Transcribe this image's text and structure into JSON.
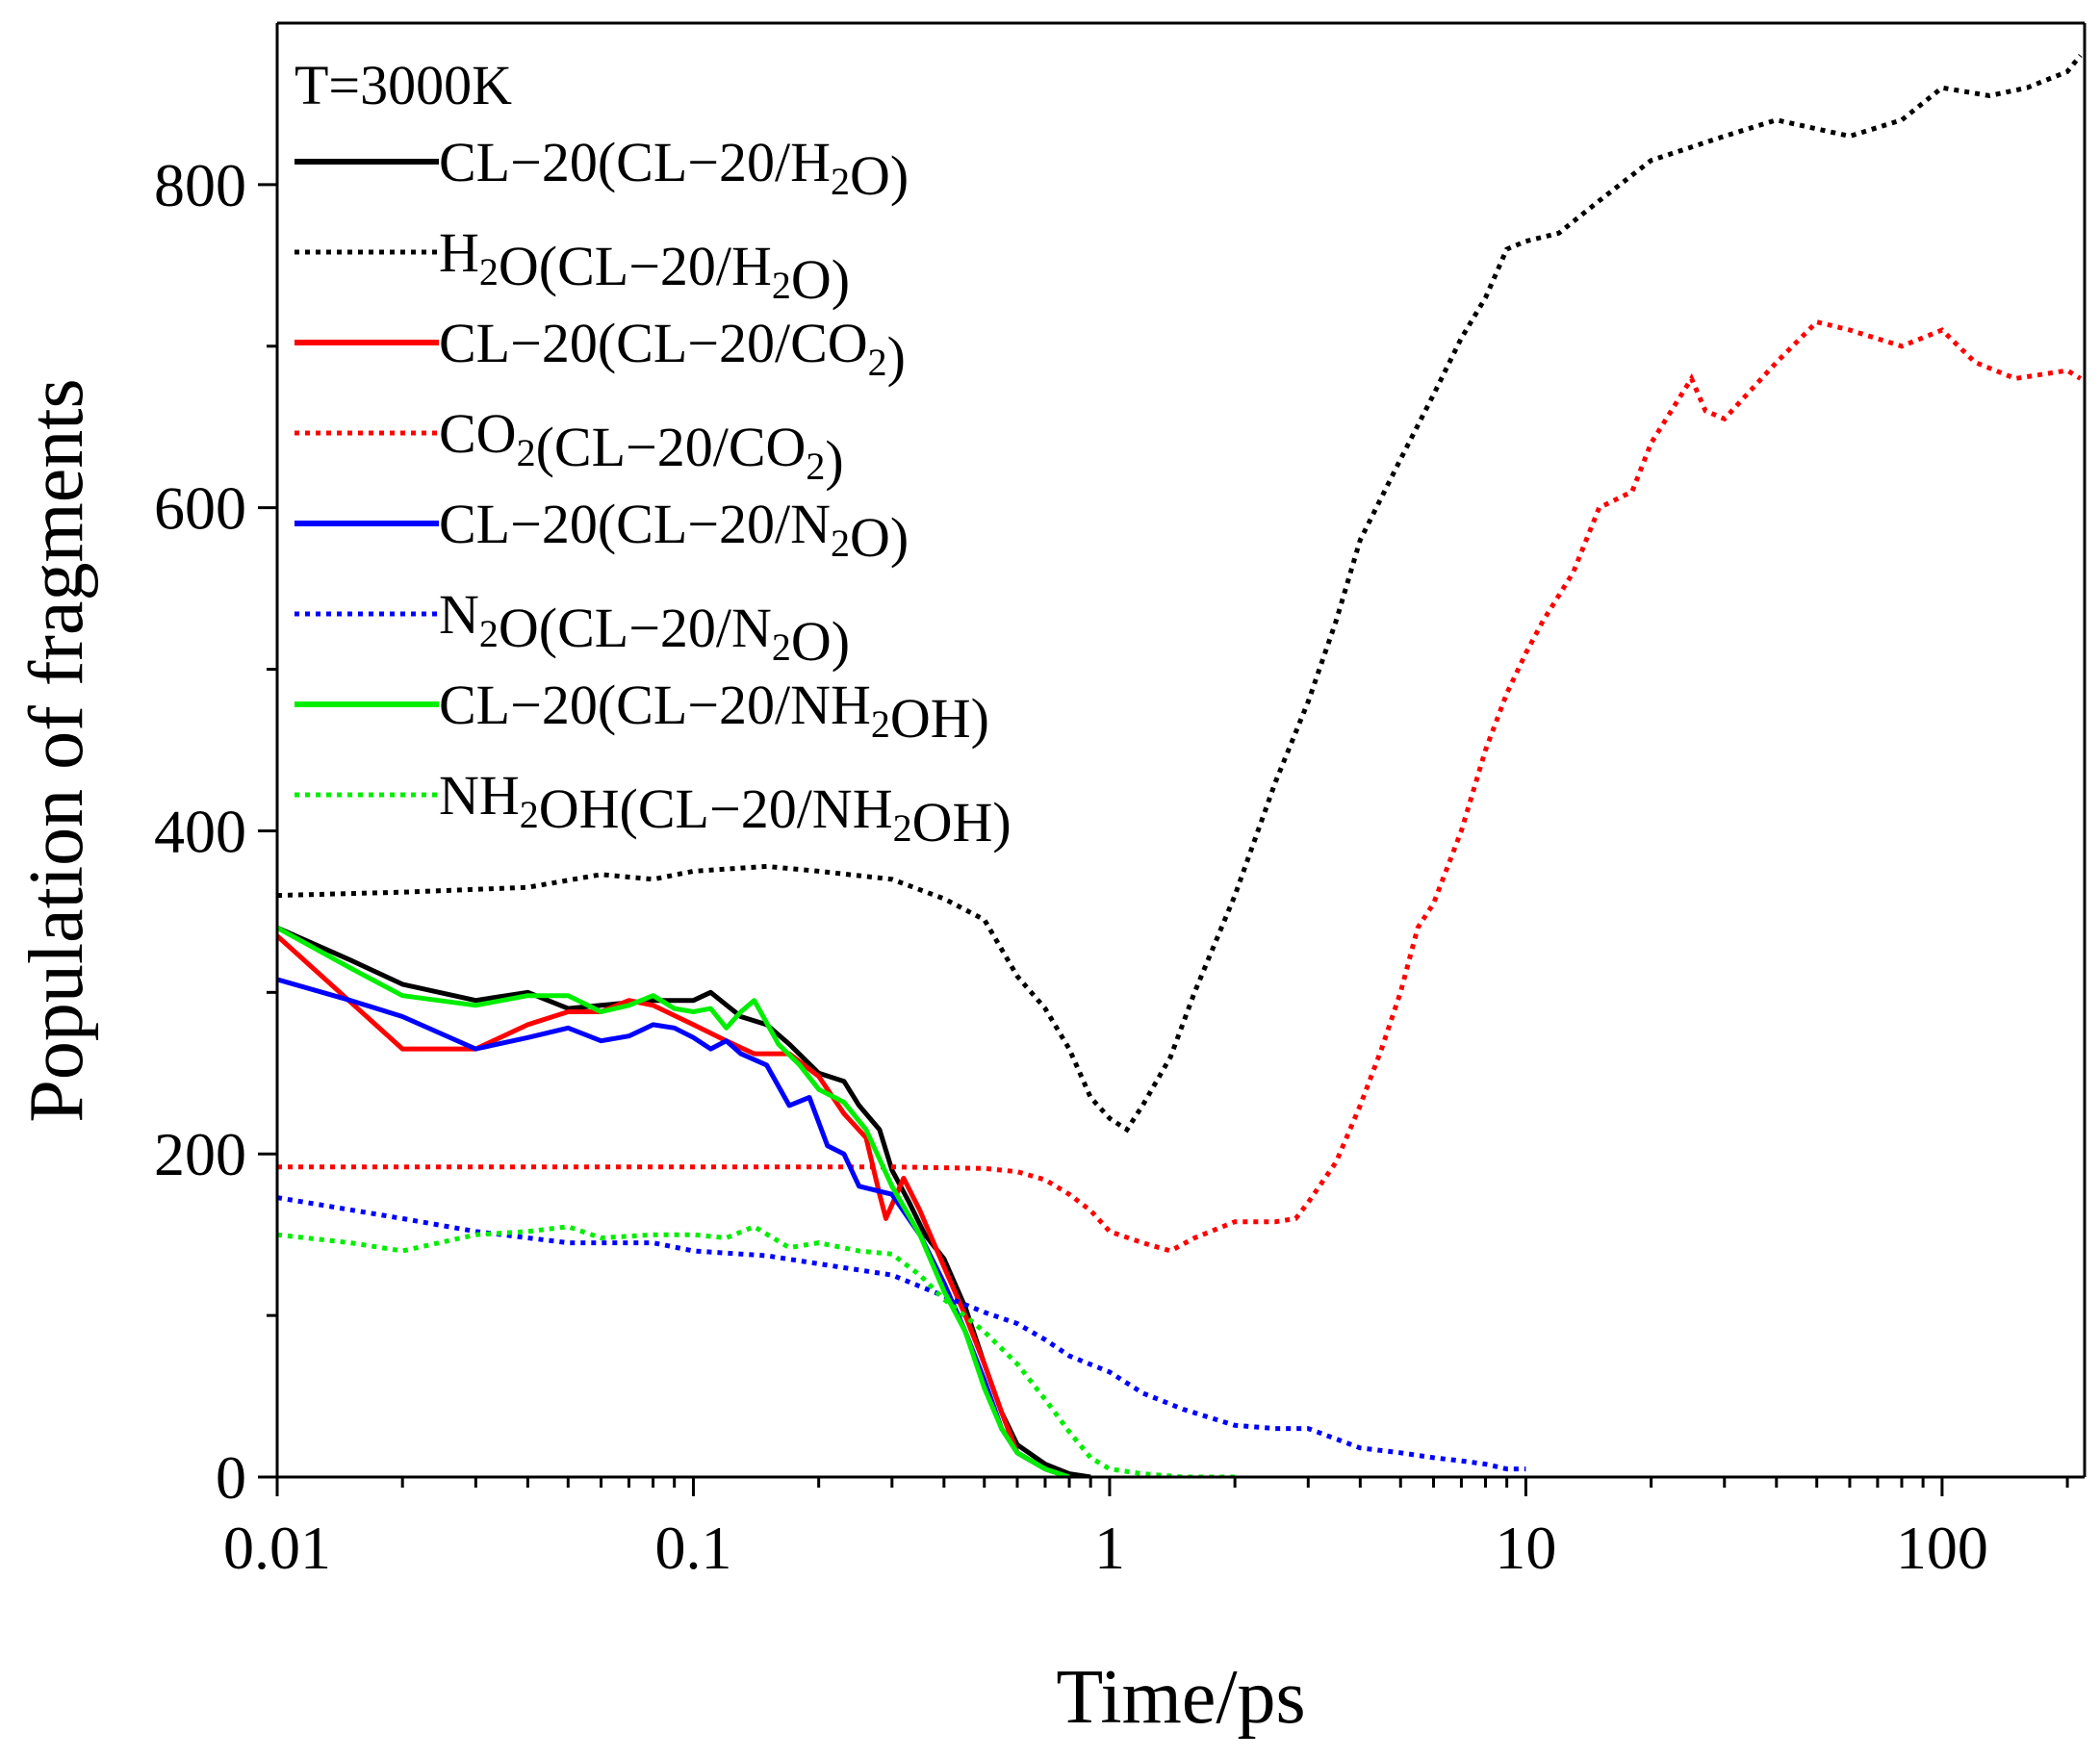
{
  "chart_data": {
    "type": "line",
    "title": "",
    "xlabel": "Time/ps",
    "ylabel": "Population of fragments",
    "xscale": "log",
    "xlim": [
      0.01,
      220
    ],
    "ylim": [
      0,
      900
    ],
    "xticks": [
      0.01,
      0.1,
      1,
      10,
      100
    ],
    "xtick_labels": [
      "0.01",
      "0.1",
      "1",
      "10",
      "100"
    ],
    "yticks": [
      0,
      200,
      400,
      600,
      800
    ],
    "ytick_labels": [
      "0",
      "200",
      "400",
      "600",
      "800"
    ],
    "legend_title": "T=3000K",
    "legend_position": "top-left",
    "series": [
      {
        "name": "CL−20(CL−20/H2O)",
        "label_parts": [
          [
            "CL−20(CL−20/H",
            ""
          ],
          [
            "2",
            "sub"
          ],
          [
            "O)",
            ""
          ]
        ],
        "color": "#000000",
        "style": "solid",
        "points": [
          [
            0.01,
            340
          ],
          [
            0.015,
            320
          ],
          [
            0.02,
            305
          ],
          [
            0.03,
            295
          ],
          [
            0.04,
            300
          ],
          [
            0.05,
            290
          ],
          [
            0.06,
            292
          ],
          [
            0.08,
            295
          ],
          [
            0.1,
            295
          ],
          [
            0.11,
            300
          ],
          [
            0.13,
            285
          ],
          [
            0.15,
            280
          ],
          [
            0.17,
            268
          ],
          [
            0.2,
            250
          ],
          [
            0.23,
            245
          ],
          [
            0.25,
            230
          ],
          [
            0.28,
            215
          ],
          [
            0.3,
            190
          ],
          [
            0.33,
            170
          ],
          [
            0.36,
            150
          ],
          [
            0.4,
            135
          ],
          [
            0.45,
            105
          ],
          [
            0.5,
            70
          ],
          [
            0.55,
            40
          ],
          [
            0.6,
            20
          ],
          [
            0.7,
            8
          ],
          [
            0.8,
            2
          ],
          [
            0.9,
            0
          ]
        ]
      },
      {
        "name": "H2O(CL−20/H2O)",
        "label_parts": [
          [
            "H",
            ""
          ],
          [
            "2",
            "sub"
          ],
          [
            "O(CL−20/H",
            ""
          ],
          [
            "2",
            "sub"
          ],
          [
            "O)",
            ""
          ]
        ],
        "color": "#000000",
        "style": "dotted",
        "points": [
          [
            0.01,
            360
          ],
          [
            0.02,
            362
          ],
          [
            0.04,
            365
          ],
          [
            0.06,
            373
          ],
          [
            0.08,
            370
          ],
          [
            0.1,
            375
          ],
          [
            0.15,
            378
          ],
          [
            0.2,
            375
          ],
          [
            0.3,
            370
          ],
          [
            0.4,
            358
          ],
          [
            0.5,
            345
          ],
          [
            0.6,
            310
          ],
          [
            0.7,
            290
          ],
          [
            0.8,
            265
          ],
          [
            0.9,
            235
          ],
          [
            1.0,
            222
          ],
          [
            1.1,
            215
          ],
          [
            1.2,
            230
          ],
          [
            1.4,
            260
          ],
          [
            1.6,
            300
          ],
          [
            2.0,
            360
          ],
          [
            2.5,
            430
          ],
          [
            3,
            480
          ],
          [
            3.5,
            530
          ],
          [
            4,
            580
          ],
          [
            5,
            630
          ],
          [
            6,
            670
          ],
          [
            7,
            705
          ],
          [
            8,
            730
          ],
          [
            9,
            760
          ],
          [
            10,
            765
          ],
          [
            12,
            770
          ],
          [
            15,
            790
          ],
          [
            20,
            815
          ],
          [
            30,
            830
          ],
          [
            40,
            840
          ],
          [
            60,
            830
          ],
          [
            80,
            840
          ],
          [
            100,
            860
          ],
          [
            130,
            855
          ],
          [
            160,
            860
          ],
          [
            200,
            870
          ],
          [
            215,
            880
          ]
        ]
      },
      {
        "name": "CL−20(CL−20/CO2)",
        "label_parts": [
          [
            "CL−20(CL−20/CO",
            ""
          ],
          [
            "2",
            "sub"
          ],
          [
            ")",
            ""
          ]
        ],
        "color": "#ff0000",
        "style": "solid",
        "points": [
          [
            0.01,
            335
          ],
          [
            0.02,
            265
          ],
          [
            0.03,
            265
          ],
          [
            0.04,
            280
          ],
          [
            0.05,
            288
          ],
          [
            0.06,
            288
          ],
          [
            0.07,
            295
          ],
          [
            0.08,
            292
          ],
          [
            0.1,
            280
          ],
          [
            0.12,
            270
          ],
          [
            0.14,
            262
          ],
          [
            0.17,
            262
          ],
          [
            0.2,
            248
          ],
          [
            0.23,
            225
          ],
          [
            0.26,
            210
          ],
          [
            0.28,
            175
          ],
          [
            0.29,
            160
          ],
          [
            0.32,
            185
          ],
          [
            0.35,
            165
          ],
          [
            0.4,
            130
          ],
          [
            0.45,
            100
          ],
          [
            0.5,
            70
          ],
          [
            0.55,
            40
          ],
          [
            0.6,
            15
          ],
          [
            0.7,
            5
          ],
          [
            0.8,
            0
          ]
        ]
      },
      {
        "name": "CO2(CL−20/CO2)",
        "label_parts": [
          [
            "CO",
            ""
          ],
          [
            "2",
            "sub"
          ],
          [
            "(CL−20/CO",
            ""
          ],
          [
            "2",
            "sub"
          ],
          [
            ")",
            ""
          ]
        ],
        "color": "#ff0000",
        "style": "dotted",
        "points": [
          [
            0.01,
            192
          ],
          [
            0.1,
            192
          ],
          [
            0.3,
            192
          ],
          [
            0.5,
            191
          ],
          [
            0.6,
            189
          ],
          [
            0.7,
            184
          ],
          [
            0.8,
            175
          ],
          [
            0.9,
            165
          ],
          [
            1.0,
            152
          ],
          [
            1.2,
            145
          ],
          [
            1.4,
            140
          ],
          [
            1.6,
            148
          ],
          [
            2,
            158
          ],
          [
            2.5,
            158
          ],
          [
            2.8,
            160
          ],
          [
            3,
            170
          ],
          [
            3.5,
            195
          ],
          [
            4,
            230
          ],
          [
            4.5,
            265
          ],
          [
            5,
            300
          ],
          [
            5.5,
            340
          ],
          [
            6,
            355
          ],
          [
            7,
            400
          ],
          [
            8,
            450
          ],
          [
            9,
            485
          ],
          [
            10,
            510
          ],
          [
            11,
            530
          ],
          [
            13,
            560
          ],
          [
            15,
            600
          ],
          [
            18,
            610
          ],
          [
            20,
            640
          ],
          [
            25,
            680
          ],
          [
            27,
            660
          ],
          [
            30,
            655
          ],
          [
            40,
            690
          ],
          [
            50,
            715
          ],
          [
            60,
            710
          ],
          [
            80,
            700
          ],
          [
            100,
            710
          ],
          [
            120,
            690
          ],
          [
            150,
            680
          ],
          [
            200,
            685
          ],
          [
            215,
            680
          ]
        ]
      },
      {
        "name": "CL−20(CL−20/N2O)",
        "label_parts": [
          [
            "CL−20(CL−20/N",
            ""
          ],
          [
            "2",
            "sub"
          ],
          [
            "O)",
            ""
          ]
        ],
        "color": "#0000ff",
        "style": "solid",
        "points": [
          [
            0.01,
            308
          ],
          [
            0.015,
            295
          ],
          [
            0.02,
            285
          ],
          [
            0.03,
            265
          ],
          [
            0.04,
            272
          ],
          [
            0.05,
            278
          ],
          [
            0.06,
            270
          ],
          [
            0.07,
            273
          ],
          [
            0.08,
            280
          ],
          [
            0.09,
            278
          ],
          [
            0.1,
            272
          ],
          [
            0.11,
            265
          ],
          [
            0.12,
            270
          ],
          [
            0.13,
            262
          ],
          [
            0.15,
            255
          ],
          [
            0.17,
            230
          ],
          [
            0.19,
            235
          ],
          [
            0.21,
            205
          ],
          [
            0.23,
            200
          ],
          [
            0.25,
            180
          ],
          [
            0.3,
            175
          ],
          [
            0.35,
            150
          ],
          [
            0.4,
            120
          ],
          [
            0.45,
            90
          ],
          [
            0.5,
            60
          ],
          [
            0.55,
            30
          ],
          [
            0.6,
            15
          ],
          [
            0.7,
            5
          ],
          [
            0.8,
            0
          ]
        ]
      },
      {
        "name": "N2O(CL−20/N2O)",
        "label_parts": [
          [
            "N",
            ""
          ],
          [
            "2",
            "sub"
          ],
          [
            "O(CL−20/N",
            ""
          ],
          [
            "2",
            "sub"
          ],
          [
            "O)",
            ""
          ]
        ],
        "color": "#0000ff",
        "style": "dotted",
        "points": [
          [
            0.01,
            173
          ],
          [
            0.02,
            160
          ],
          [
            0.03,
            152
          ],
          [
            0.05,
            145
          ],
          [
            0.08,
            145
          ],
          [
            0.1,
            140
          ],
          [
            0.15,
            137
          ],
          [
            0.2,
            132
          ],
          [
            0.3,
            125
          ],
          [
            0.4,
            112
          ],
          [
            0.5,
            102
          ],
          [
            0.6,
            95
          ],
          [
            0.7,
            85
          ],
          [
            0.8,
            75
          ],
          [
            1.0,
            65
          ],
          [
            1.2,
            52
          ],
          [
            1.5,
            42
          ],
          [
            2,
            32
          ],
          [
            2.5,
            30
          ],
          [
            3,
            30
          ],
          [
            4,
            18
          ],
          [
            5,
            15
          ],
          [
            6,
            12
          ],
          [
            7,
            10
          ],
          [
            8,
            8
          ],
          [
            9,
            5
          ],
          [
            10,
            5
          ]
        ]
      },
      {
        "name": "CL−20(CL−20/NH2OH)",
        "label_parts": [
          [
            "CL−20(CL−20/NH",
            ""
          ],
          [
            "2",
            "sub"
          ],
          [
            "OH)",
            ""
          ]
        ],
        "color": "#00ee00",
        "style": "solid",
        "points": [
          [
            0.01,
            340
          ],
          [
            0.015,
            315
          ],
          [
            0.02,
            298
          ],
          [
            0.03,
            292
          ],
          [
            0.04,
            298
          ],
          [
            0.05,
            298
          ],
          [
            0.06,
            288
          ],
          [
            0.07,
            292
          ],
          [
            0.08,
            298
          ],
          [
            0.09,
            290
          ],
          [
            0.1,
            288
          ],
          [
            0.11,
            290
          ],
          [
            0.12,
            278
          ],
          [
            0.13,
            288
          ],
          [
            0.14,
            295
          ],
          [
            0.16,
            268
          ],
          [
            0.18,
            255
          ],
          [
            0.2,
            240
          ],
          [
            0.23,
            232
          ],
          [
            0.26,
            215
          ],
          [
            0.3,
            180
          ],
          [
            0.35,
            150
          ],
          [
            0.4,
            115
          ],
          [
            0.45,
            90
          ],
          [
            0.5,
            55
          ],
          [
            0.55,
            30
          ],
          [
            0.6,
            15
          ],
          [
            0.7,
            5
          ],
          [
            0.8,
            0
          ]
        ]
      },
      {
        "name": "NH2OH(CL−20/NH2OH)",
        "label_parts": [
          [
            "NH",
            ""
          ],
          [
            "2",
            "sub"
          ],
          [
            "OH(CL−20/NH",
            ""
          ],
          [
            "2",
            "sub"
          ],
          [
            "OH)",
            ""
          ]
        ],
        "color": "#00ee00",
        "style": "dotted",
        "points": [
          [
            0.01,
            150
          ],
          [
            0.015,
            145
          ],
          [
            0.02,
            140
          ],
          [
            0.03,
            150
          ],
          [
            0.04,
            152
          ],
          [
            0.05,
            155
          ],
          [
            0.06,
            148
          ],
          [
            0.08,
            150
          ],
          [
            0.1,
            150
          ],
          [
            0.12,
            148
          ],
          [
            0.14,
            155
          ],
          [
            0.17,
            142
          ],
          [
            0.2,
            145
          ],
          [
            0.25,
            140
          ],
          [
            0.3,
            138
          ],
          [
            0.35,
            125
          ],
          [
            0.4,
            110
          ],
          [
            0.5,
            90
          ],
          [
            0.6,
            70
          ],
          [
            0.7,
            48
          ],
          [
            0.8,
            28
          ],
          [
            0.9,
            12
          ],
          [
            1.0,
            5
          ],
          [
            1.2,
            2
          ],
          [
            1.5,
            0
          ],
          [
            2,
            0
          ]
        ]
      }
    ]
  }
}
